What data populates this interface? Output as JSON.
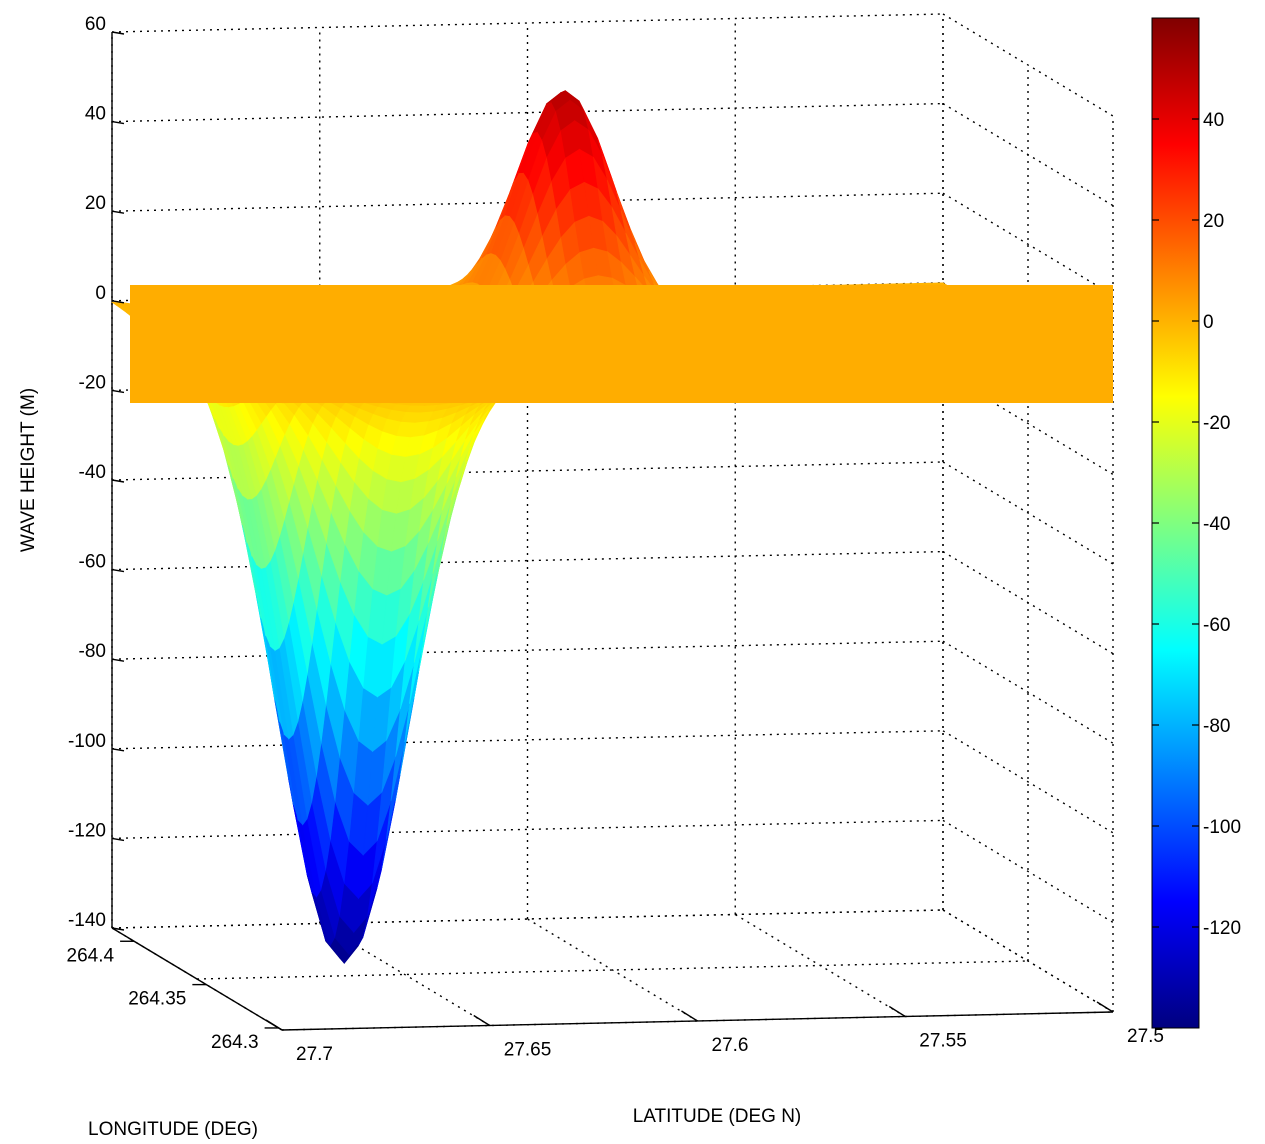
{
  "chart_data": {
    "type": "surface",
    "zlabel": "WAVE HEIGHT (M)",
    "xlabel": "LATITUDE (DEG N)",
    "ylabel": "LONGITUDE (DEG)",
    "z_ticks": [
      "60",
      "40",
      "20",
      "0",
      "-20",
      "-40",
      "-60",
      "-80",
      "-100",
      "-120",
      "-140"
    ],
    "latitude_ticks": [
      "27.7",
      "27.65",
      "27.6",
      "27.55",
      "27.5"
    ],
    "longitude_ticks": [
      "264.4",
      "264.35",
      "264.3"
    ],
    "colorbar_ticks": [
      "40",
      "20",
      "0",
      "-20",
      "-40",
      "-60",
      "-80",
      "-100",
      "-120"
    ],
    "zlim": [
      -140,
      60
    ],
    "latitude_range": [
      27.5,
      27.7
    ],
    "longitude_range": [
      264.3,
      264.4
    ],
    "colorbar_range": [
      -140,
      60
    ],
    "colormap": "jet",
    "grid": true,
    "features": [
      {
        "kind": "peak",
        "value": 50,
        "latitude": 27.6
      },
      {
        "kind": "trough",
        "value": -140,
        "latitude": 27.66
      }
    ],
    "water_plane": {
      "value": 0,
      "color": "#ffad00"
    }
  }
}
